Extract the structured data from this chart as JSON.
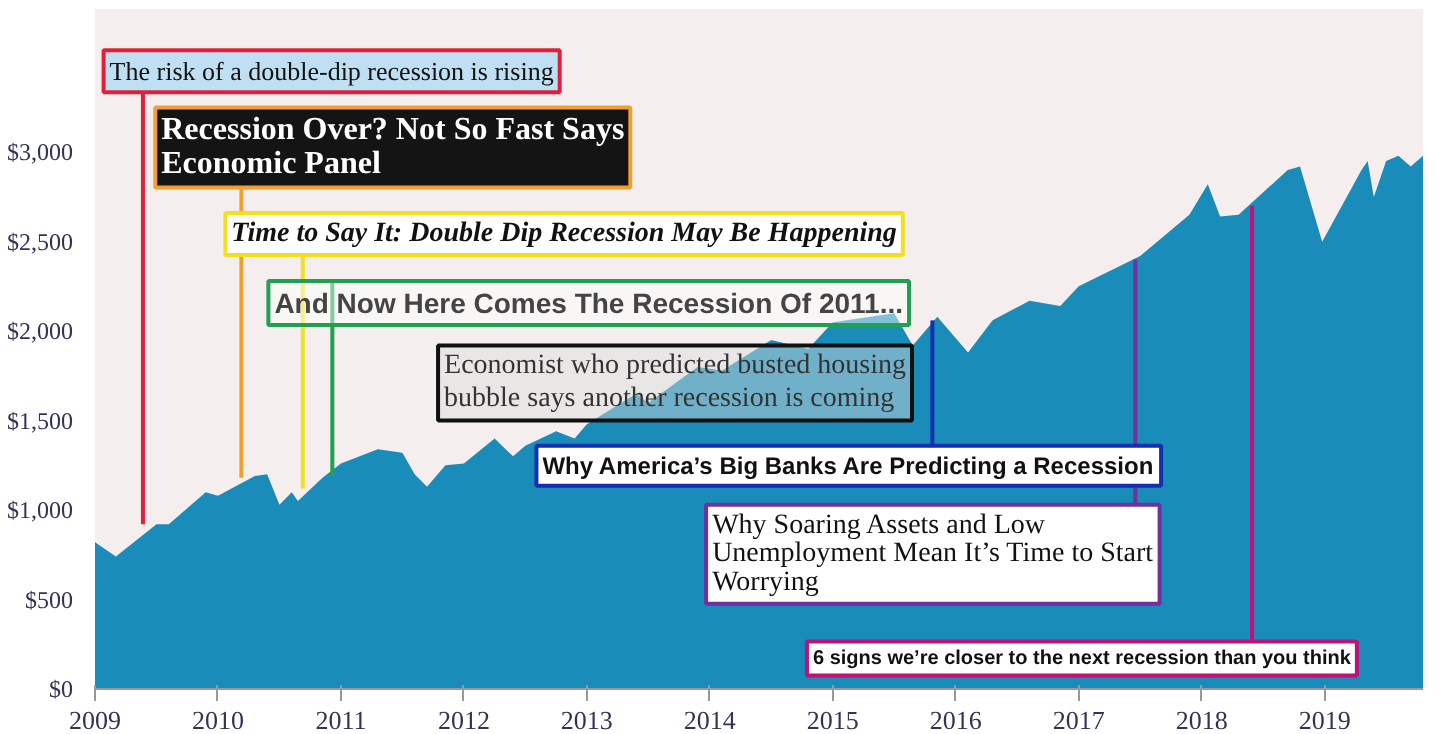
{
  "chart_data": {
    "type": "area",
    "color": "#1a8cba",
    "x": [
      2009.0,
      2009.17,
      2009.5,
      2009.6,
      2009.9,
      2010.0,
      2010.3,
      2010.4,
      2010.5,
      2010.6,
      2010.65,
      2010.85,
      2011.0,
      2011.3,
      2011.5,
      2011.6,
      2011.7,
      2011.85,
      2012.0,
      2012.25,
      2012.4,
      2012.5,
      2012.75,
      2012.9,
      2013.0,
      2013.4,
      2013.5,
      2013.9,
      2014.1,
      2014.5,
      2014.8,
      2015.0,
      2015.5,
      2015.65,
      2015.85,
      2016.1,
      2016.3,
      2016.6,
      2016.85,
      2017.0,
      2017.5,
      2017.9,
      2018.05,
      2018.15,
      2018.3,
      2018.7,
      2018.8,
      2018.98,
      2019.3,
      2019.35,
      2019.4,
      2019.5,
      2019.6,
      2019.7,
      2019.8
    ],
    "values": [
      820,
      740,
      920,
      920,
      1100,
      1080,
      1190,
      1200,
      1030,
      1100,
      1050,
      1180,
      1260,
      1340,
      1320,
      1200,
      1130,
      1250,
      1260,
      1400,
      1300,
      1360,
      1440,
      1400,
      1480,
      1650,
      1600,
      1800,
      1780,
      1950,
      1900,
      2050,
      2100,
      1920,
      2080,
      1880,
      2060,
      2170,
      2140,
      2250,
      2420,
      2650,
      2820,
      2640,
      2650,
      2900,
      2920,
      2500,
      2900,
      2950,
      2750,
      2950,
      2980,
      2920,
      2980
    ],
    "xlim": [
      2009,
      2019.8
    ],
    "ylim": [
      0,
      3800
    ],
    "xticks": [
      2009,
      2010,
      2011,
      2012,
      2013,
      2014,
      2015,
      2016,
      2017,
      2018,
      2019
    ],
    "yticks": [
      {
        "value": 0,
        "label": "$0"
      },
      {
        "value": 500,
        "label": "$500"
      },
      {
        "value": 1000,
        "label": "$1,000"
      },
      {
        "value": 1500,
        "label": "$1,500"
      },
      {
        "value": 2000,
        "label": "$2,000"
      },
      {
        "value": 2500,
        "label": "$2,500"
      },
      {
        "value": 3000,
        "label": "$3,000"
      }
    ],
    "grid": false,
    "annotations": [
      {
        "text": "The risk of a double-dip recession is rising",
        "x": 2009.39,
        "y": 920
      },
      {
        "text": "Recession Over? Not So Fast Says\nEconomic Panel",
        "x": 2010.19,
        "y": 1180
      },
      {
        "text": "Time to Say It: Double Dip Recession May Be Happening",
        "x": 2010.69,
        "y": 1120
      },
      {
        "text": "And Now Here Comes The Recession Of 2011...",
        "x": 2010.93,
        "y": 1190
      },
      {
        "text": "Economist who predicted busted housing\nbubble says another recession is coming",
        "x": 2014.67,
        "y": 1920
      },
      {
        "text": "Why America’s Big Banks Are Predicting a Recession",
        "x": 2015.81,
        "y": 2060
      },
      {
        "text": "Why Soaring Assets and Low\nUnemployment Mean It’s Time to Start\nWorrying",
        "x": 2017.46,
        "y": 2400
      },
      {
        "text": "6 signs we’re closer to the next recession than you think",
        "x": 2018.41,
        "y": 2700
      }
    ]
  }
}
